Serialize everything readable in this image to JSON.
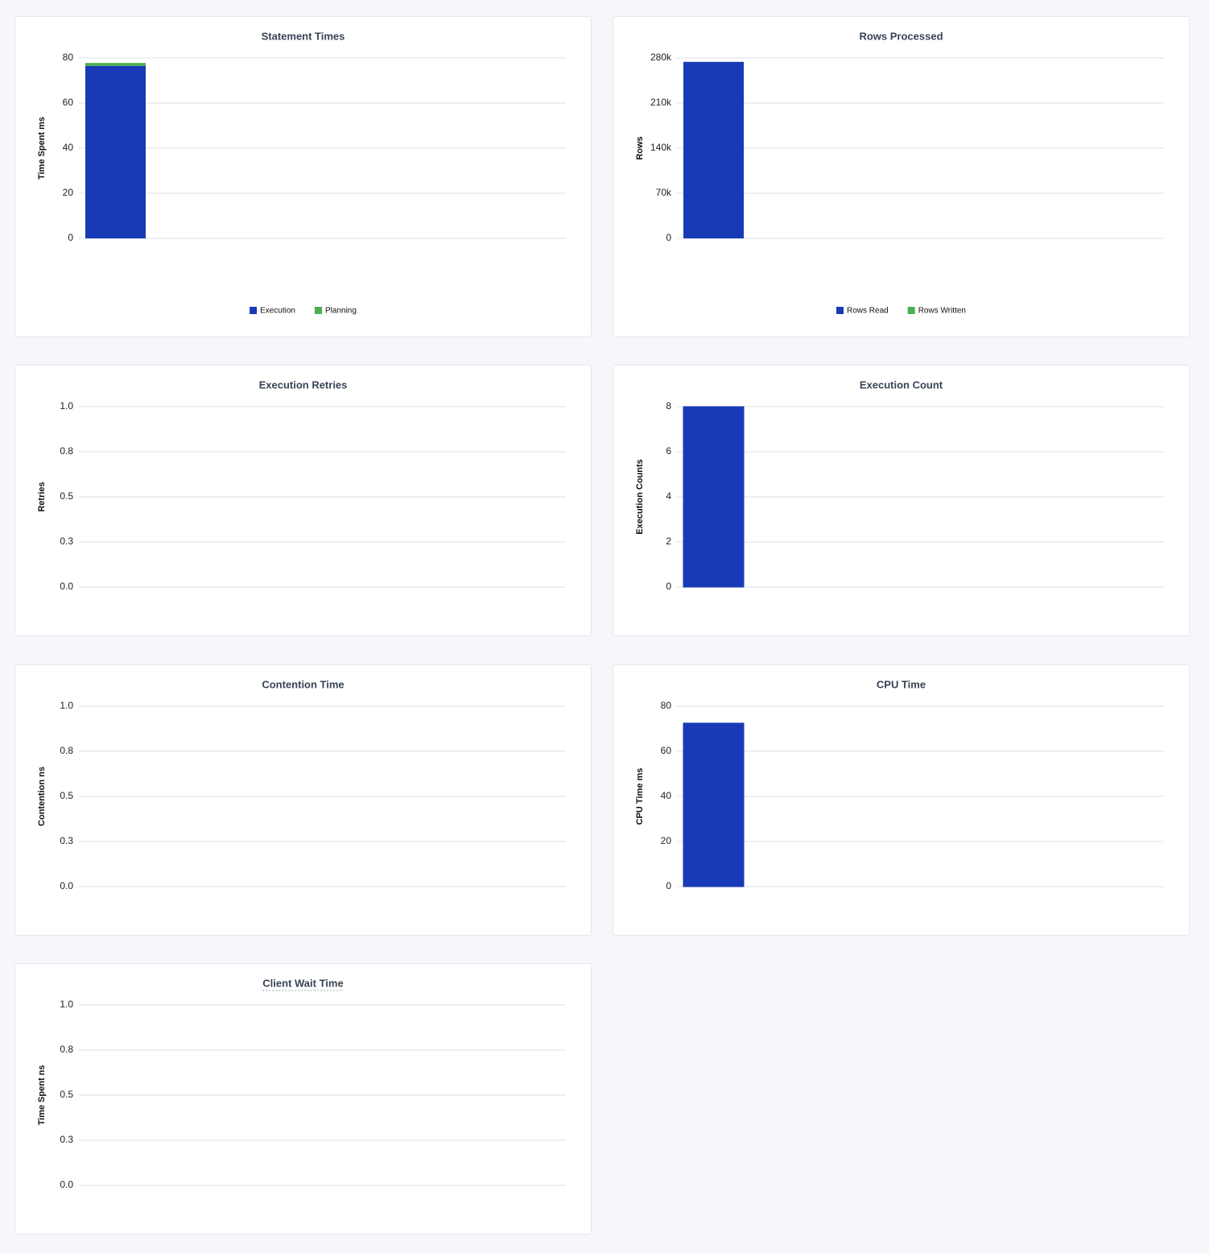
{
  "chart_data": [
    {
      "type": "bar",
      "stacked": true,
      "title": "Statement Times",
      "y_label": "Time Spent ms",
      "categories": [
        null
      ],
      "series": [
        {
          "name": "Execution",
          "color": "#183ab6",
          "values": [
            76.5
          ]
        },
        {
          "name": "Planning",
          "color": "#4caf50",
          "values": [
            1.3
          ]
        }
      ],
      "ylim": [
        0,
        80
      ],
      "yticks": [
        0,
        20,
        40,
        60,
        80
      ],
      "grid": true,
      "legend": "bottom"
    },
    {
      "type": "bar",
      "stacked": true,
      "title": "Rows Processed",
      "y_label": "Rows",
      "categories": [
        null
      ],
      "series": [
        {
          "name": "Rows Read",
          "color": "#183ab6",
          "values": [
            274000
          ]
        },
        {
          "name": "Rows Written",
          "color": "#4caf50",
          "values": [
            0
          ]
        }
      ],
      "ylim": [
        0,
        280000
      ],
      "yticks": [
        0,
        {
          "value": 70000,
          "label": "70k"
        },
        {
          "value": 140000,
          "label": "140k"
        },
        {
          "value": 210000,
          "label": "210k"
        },
        {
          "value": 280000,
          "label": "280k"
        }
      ],
      "grid": true,
      "legend": "bottom"
    },
    {
      "type": "bar",
      "title": "Execution Retries",
      "y_label": "Retries",
      "categories": [
        null
      ],
      "values": [
        0
      ],
      "color": "#183ab6",
      "ylim": [
        0,
        1
      ],
      "yticks": [
        {
          "value": 0,
          "label": "0.0"
        },
        {
          "value": 0.25,
          "label": "0.3"
        },
        0.5,
        {
          "value": 0.75,
          "label": "0.8"
        },
        {
          "value": 1,
          "label": "1.0"
        }
      ],
      "grid": true
    },
    {
      "type": "bar",
      "title": "Execution Count",
      "y_label": "Execution Counts",
      "categories": [
        null
      ],
      "values": [
        8
      ],
      "color": "#183ab6",
      "ylim": [
        0,
        8
      ],
      "yticks": [
        0,
        2,
        4,
        6,
        8
      ],
      "grid": true
    },
    {
      "type": "bar",
      "title": "Contention Time",
      "y_label": "Contention ns",
      "categories": [
        null
      ],
      "values": [
        0
      ],
      "color": "#183ab6",
      "ylim": [
        0,
        1
      ],
      "yticks": [
        {
          "value": 0,
          "label": "0.0"
        },
        {
          "value": 0.25,
          "label": "0.3"
        },
        0.5,
        {
          "value": 0.75,
          "label": "0.8"
        },
        {
          "value": 1,
          "label": "1.0"
        }
      ],
      "grid": true
    },
    {
      "type": "bar",
      "title": "CPU Time",
      "y_label": "CPU Time ms",
      "categories": [
        null
      ],
      "values": [
        72.5
      ],
      "color": "#183ab6",
      "ylim": [
        0,
        80
      ],
      "yticks": [
        0,
        20,
        40,
        60,
        80
      ],
      "grid": true
    },
    {
      "type": "bar",
      "title": "Client Wait Time",
      "y_label": "Time Spent ns",
      "categories": [
        null
      ],
      "values": [
        0
      ],
      "color": "#183ab6",
      "ylim": [
        0,
        1
      ],
      "yticks": [
        {
          "value": 0,
          "label": "0.0"
        },
        {
          "value": 0.25,
          "label": "0.3"
        },
        0.5,
        {
          "value": 0.75,
          "label": "0.8"
        },
        {
          "value": 1,
          "label": "1.0"
        }
      ],
      "grid": true
    }
  ]
}
